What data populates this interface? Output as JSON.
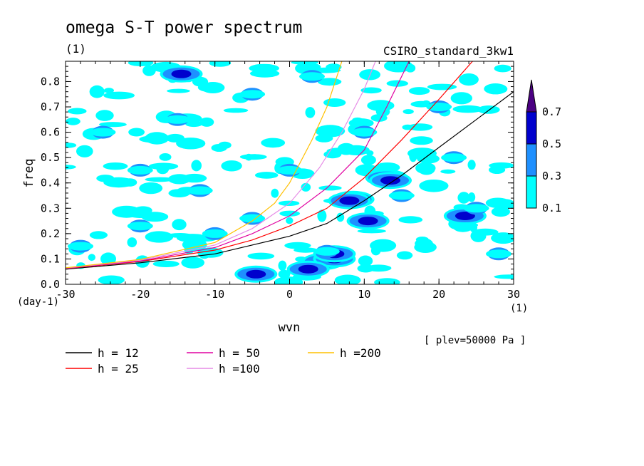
{
  "chart_data": {
    "type": "heatmap",
    "title": "omega S-T power spectrum",
    "subtitle_left": "(1)",
    "subtitle_right": "CSIRO_standard_3kw1",
    "xlabel": "wvn",
    "ylabel": "freq",
    "x_unit": "(1)",
    "y_unit": "(day-1)",
    "xlim": [
      -30,
      30
    ],
    "ylim": [
      0,
      0.88
    ],
    "x_ticks": [
      -30,
      -20,
      -10,
      0,
      10,
      20,
      30
    ],
    "x_tick_labels": [
      "-30",
      "-20",
      "-10",
      "0",
      "10",
      "20",
      "30"
    ],
    "y_ticks": [
      0,
      0.1,
      0.2,
      0.3,
      0.4,
      0.5,
      0.6,
      0.7,
      0.8
    ],
    "y_tick_labels": [
      "0.0",
      "0.1",
      "0.2",
      "0.3",
      "0.4",
      "0.5",
      "0.6",
      "0.7",
      "0.8"
    ],
    "annotation": "[ plev=50000 Pa ]",
    "colorbar": {
      "levels": [
        "0.1",
        "0.3",
        "0.5",
        "0.7"
      ],
      "colors": [
        "#00ffff",
        "#1e90ff",
        "#0000cd",
        "#4b0082"
      ]
    },
    "heatmap_patches": [
      {
        "x": 4.5,
        "y": 0.09,
        "level": 3
      },
      {
        "x": 6.0,
        "y": 0.1,
        "level": 3
      },
      {
        "x": 8.5,
        "y": 0.335,
        "level": 3
      },
      {
        "x": 13.0,
        "y": 0.42,
        "level": 3
      },
      {
        "x": -4.5,
        "y": 0.04,
        "level": 2
      },
      {
        "x": 2.5,
        "y": 0.06,
        "level": 2
      },
      {
        "x": 6.0,
        "y": 0.12,
        "level": 2
      },
      {
        "x": 8.0,
        "y": 0.33,
        "level": 2
      },
      {
        "x": 10.5,
        "y": 0.25,
        "level": 2
      },
      {
        "x": 23.5,
        "y": 0.27,
        "level": 2
      },
      {
        "x": -14.5,
        "y": 0.83,
        "level": 2
      },
      {
        "x": 13.5,
        "y": 0.41,
        "level": 2
      },
      {
        "x": -20,
        "y": 0.23,
        "level": 1
      },
      {
        "x": -10,
        "y": 0.2,
        "level": 1
      },
      {
        "x": -5,
        "y": 0.26,
        "level": 1
      },
      {
        "x": 5,
        "y": 0.13,
        "level": 1
      },
      {
        "x": 15,
        "y": 0.35,
        "level": 1
      },
      {
        "x": 25,
        "y": 0.3,
        "level": 1
      },
      {
        "x": -25,
        "y": 0.6,
        "level": 1
      },
      {
        "x": -15,
        "y": 0.65,
        "level": 1
      },
      {
        "x": -5,
        "y": 0.75,
        "level": 1
      },
      {
        "x": 10,
        "y": 0.6,
        "level": 1
      },
      {
        "x": 20,
        "y": 0.7,
        "level": 1
      },
      {
        "x": -20,
        "y": 0.45,
        "level": 1
      },
      {
        "x": 0,
        "y": 0.45,
        "level": 1
      },
      {
        "x": 22,
        "y": 0.5,
        "level": 1
      },
      {
        "x": -28,
        "y": 0.15,
        "level": 1
      },
      {
        "x": 28,
        "y": 0.12,
        "level": 1
      },
      {
        "x": -12,
        "y": 0.37,
        "level": 1
      },
      {
        "x": 3,
        "y": 0.82,
        "level": 1
      }
    ],
    "series": [
      {
        "name": "h = 12",
        "h": 12,
        "color": "#000000"
      },
      {
        "name": "h = 25",
        "h": 25,
        "color": "#ff0000"
      },
      {
        "name": "h = 50",
        "h": 50,
        "color": "#e000a0"
      },
      {
        "name": "h =100",
        "h": 100,
        "color": "#e68ce6"
      },
      {
        "name": "h =200",
        "h": 200,
        "color": "#ffc000"
      }
    ]
  }
}
